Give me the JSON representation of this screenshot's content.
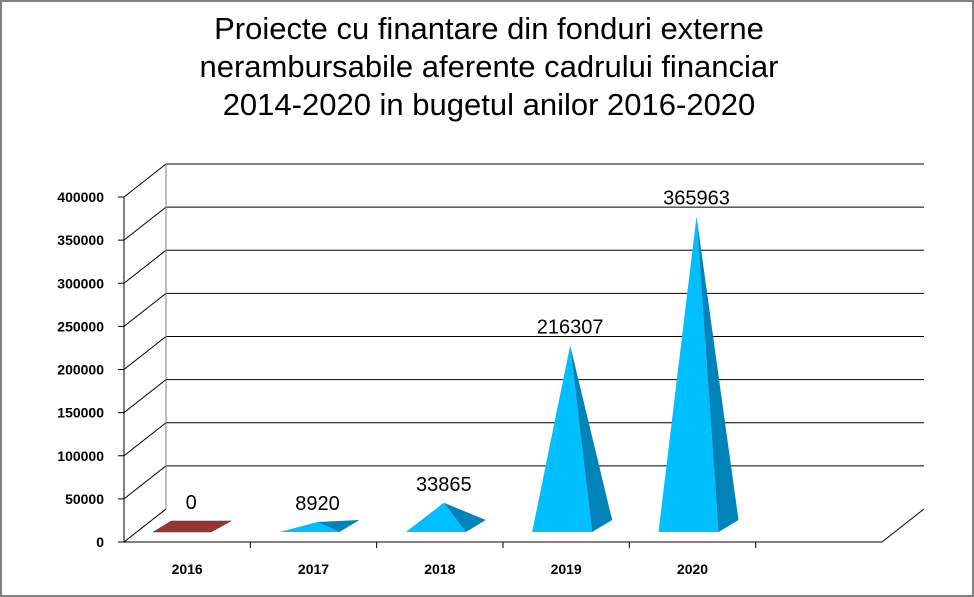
{
  "chart_data": {
    "type": "bar",
    "style": "3d-pyramid",
    "title_lines": [
      "Proiecte cu finantare din fonduri externe",
      "nerambursabile aferente cadrului financiar",
      "2014-2020 in bugetul anilor 2016-2020"
    ],
    "categories": [
      "2016",
      "2017",
      "2018",
      "2019",
      "2020"
    ],
    "values": [
      0,
      8920,
      33865,
      216307,
      365963
    ],
    "data_labels": [
      "0",
      "8920",
      "33865",
      "216307",
      "365963"
    ],
    "yticks": [
      "0",
      "50000",
      "100000",
      "150000",
      "200000",
      "250000",
      "300000",
      "350000",
      "400000"
    ],
    "ylim": [
      0,
      400000
    ],
    "grid": true,
    "legend": "none",
    "colors": {
      "bar_front": "#00BFFF",
      "bar_side": "#0083B8",
      "zero_bar": "#963634",
      "grid": "#000000"
    }
  }
}
